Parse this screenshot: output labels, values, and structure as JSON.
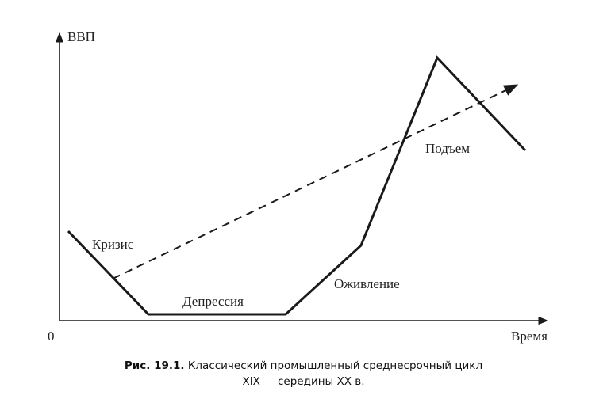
{
  "figure": {
    "y_axis_label": "ВВП",
    "x_axis_label": "Время",
    "origin_label": "0",
    "phase_labels": {
      "crisis": "Кризис",
      "depression": "Депрессия",
      "revival": "Оживление",
      "boom": "Подъем"
    },
    "colors": {
      "cycle_line": "#1a1a1a",
      "trend_line": "#1a1a1a",
      "axes": "#1a1a1a",
      "text": "#222222"
    }
  },
  "caption": {
    "number": "Рис. 19.1.",
    "text_line1": "Классический промышленный среднесрочный цикл",
    "text_line2": "XIX — середины XX в."
  }
}
